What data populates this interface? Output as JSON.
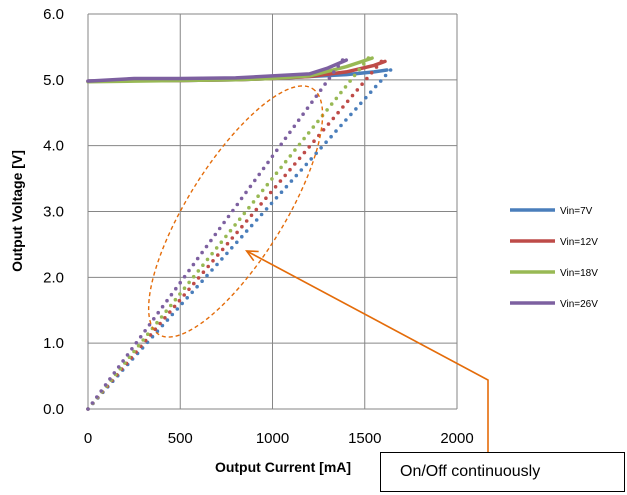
{
  "chart_data": {
    "type": "line",
    "xlabel": "Output Current [mA]",
    "ylabel": "Output Voltage [V]",
    "xlim": [
      0,
      2000
    ],
    "ylim": [
      0,
      6
    ],
    "x_ticks": [
      "0",
      "500",
      "1000",
      "1500",
      "2000"
    ],
    "y_ticks": [
      "0.0",
      "1.0",
      "2.0",
      "3.0",
      "4.0",
      "5.0",
      "6.0"
    ],
    "grid": true,
    "legend_position": "right",
    "series": [
      {
        "name": "Vin=7V",
        "color": "#4a7ebb",
        "regulated": [
          [
            0,
            4.98
          ],
          [
            250,
            4.99
          ],
          [
            500,
            4.99
          ],
          [
            800,
            5.0
          ],
          [
            1000,
            5.02
          ],
          [
            1200,
            5.05
          ],
          [
            1400,
            5.08
          ],
          [
            1550,
            5.12
          ],
          [
            1620,
            5.15
          ]
        ],
        "foldback": [
          [
            1640,
            5.15
          ],
          [
            0,
            0.0
          ]
        ]
      },
      {
        "name": "Vin=12V",
        "color": "#be4b48",
        "regulated": [
          [
            0,
            4.98
          ],
          [
            250,
            4.99
          ],
          [
            500,
            4.99
          ],
          [
            800,
            5.0
          ],
          [
            1000,
            5.02
          ],
          [
            1200,
            5.05
          ],
          [
            1400,
            5.12
          ],
          [
            1550,
            5.22
          ],
          [
            1610,
            5.28
          ]
        ],
        "foldback": [
          [
            1590,
            5.28
          ],
          [
            0,
            0.0
          ]
        ]
      },
      {
        "name": "Vin=18V",
        "color": "#98b954",
        "regulated": [
          [
            0,
            4.97
          ],
          [
            250,
            4.98
          ],
          [
            500,
            4.99
          ],
          [
            800,
            5.0
          ],
          [
            1000,
            5.02
          ],
          [
            1200,
            5.06
          ],
          [
            1400,
            5.2
          ],
          [
            1540,
            5.33
          ]
        ],
        "foldback": [
          [
            1520,
            5.33
          ],
          [
            0,
            0.0
          ]
        ]
      },
      {
        "name": "Vin=26V",
        "color": "#7d60a0",
        "regulated": [
          [
            0,
            4.98
          ],
          [
            250,
            5.02
          ],
          [
            500,
            5.02
          ],
          [
            800,
            5.03
          ],
          [
            1000,
            5.06
          ],
          [
            1200,
            5.09
          ],
          [
            1300,
            5.18
          ],
          [
            1400,
            5.3
          ]
        ],
        "foldback": [
          [
            1380,
            5.3
          ],
          [
            0,
            0.0
          ]
        ]
      }
    ],
    "annotation": {
      "text": "On/Off continuously",
      "ellipse_center": [
        800,
        3.0
      ],
      "arrow_target": [
        860,
        2.4
      ]
    },
    "annotation_color": "#e46c0a"
  }
}
